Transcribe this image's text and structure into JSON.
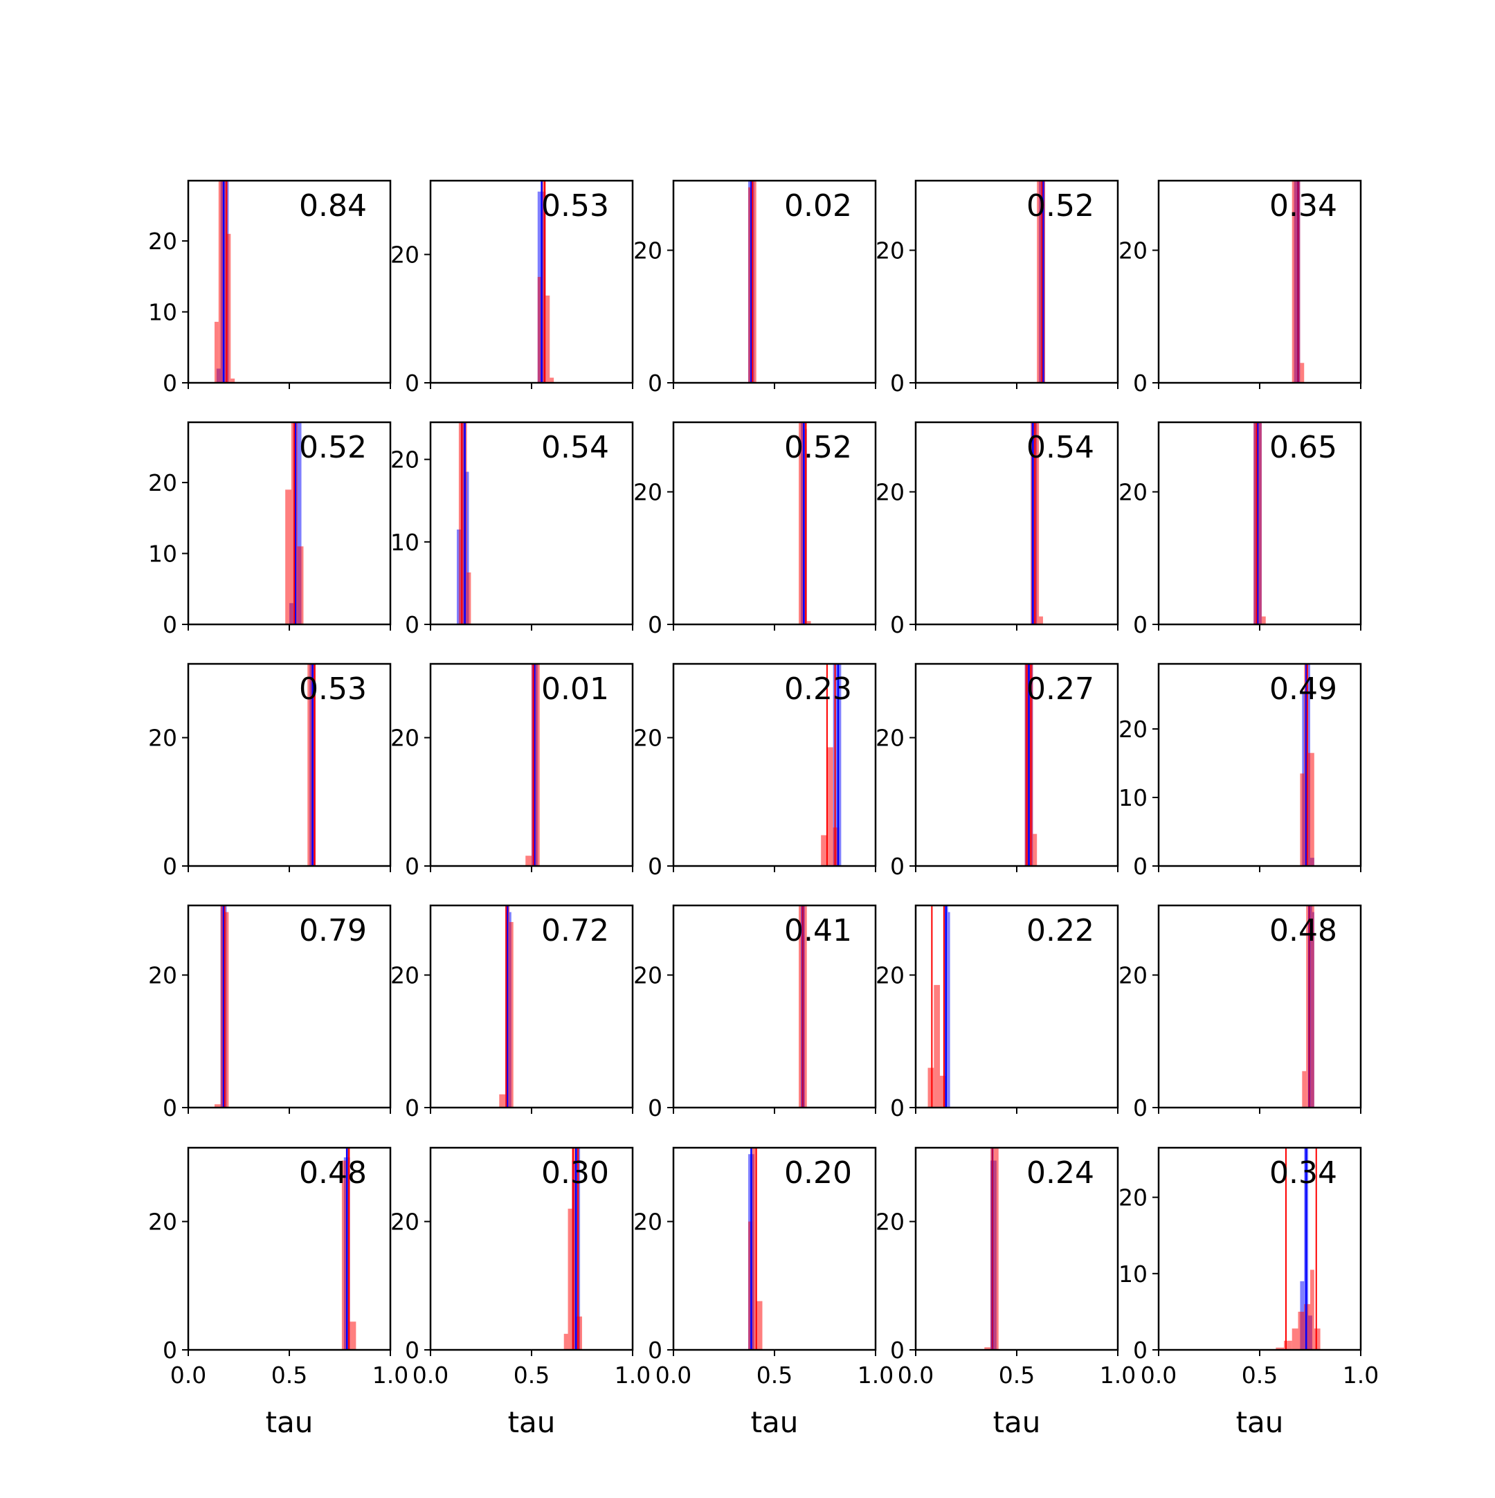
{
  "colors": {
    "series_a": "#0000ff",
    "series_b": "#ff0000",
    "axes": "#000000"
  },
  "chart_data": {
    "type": "histogram-grid",
    "rows": 5,
    "cols": 5,
    "xlabel": "tau",
    "xlim": [
      0,
      1
    ],
    "xticks": [
      "0.0",
      "0.5",
      "1.0"
    ],
    "sharex": true,
    "panels": [
      {
        "label": "0.84",
        "ymax": 28.5,
        "yticks": [
          0,
          10,
          20
        ],
        "blue": [
          [
            0.14,
            0.16,
            2.0
          ],
          [
            0.16,
            0.18,
            28.5
          ],
          [
            0.18,
            0.2,
            28.5
          ]
        ],
        "red": [
          [
            0.13,
            0.15,
            8.6
          ],
          [
            0.15,
            0.17,
            28.5
          ],
          [
            0.17,
            0.19,
            28.5
          ],
          [
            0.19,
            0.21,
            21
          ],
          [
            0.21,
            0.23,
            0.6
          ]
        ],
        "vblue": [
          0.175
        ],
        "vred": [
          0.19
        ]
      },
      {
        "label": "0.53",
        "ymax": 31.5,
        "yticks": [
          0,
          20
        ],
        "blue": [
          [
            0.53,
            0.55,
            29.8
          ],
          [
            0.55,
            0.57,
            29.8
          ]
        ],
        "red": [
          [
            0.53,
            0.55,
            16.5
          ],
          [
            0.55,
            0.57,
            31.5
          ],
          [
            0.57,
            0.59,
            13.6
          ],
          [
            0.59,
            0.61,
            0.8
          ]
        ],
        "vblue": [
          0.55
        ],
        "vred": [
          0.565
        ]
      },
      {
        "label": "0.02",
        "ymax": 30.5,
        "yticks": [
          0,
          20
        ],
        "blue": [
          [
            0.37,
            0.39,
            30.5
          ],
          [
            0.39,
            0.4,
            30.5
          ]
        ],
        "red": [
          [
            0.37,
            0.39,
            29.5
          ],
          [
            0.39,
            0.41,
            30.5
          ]
        ],
        "vblue": [
          0.385
        ],
        "vred": [
          0.39
        ]
      },
      {
        "label": "0.52",
        "ymax": 30.5,
        "yticks": [
          0,
          20
        ],
        "blue": [
          [
            0.61,
            0.63,
            30.5
          ],
          [
            0.63,
            0.64,
            30.5
          ]
        ],
        "red": [
          [
            0.6,
            0.62,
            30.5
          ],
          [
            0.62,
            0.64,
            30.5
          ]
        ],
        "vblue": [
          0.63
        ],
        "vred": [
          0.625
        ]
      },
      {
        "label": "0.34",
        "ymax": 30.5,
        "yticks": [
          0,
          20
        ],
        "blue": [
          [
            0.67,
            0.69,
            30.5
          ],
          [
            0.69,
            0.7,
            30.5
          ]
        ],
        "red": [
          [
            0.66,
            0.68,
            30.5
          ],
          [
            0.68,
            0.7,
            30.5
          ],
          [
            0.7,
            0.72,
            3.0
          ]
        ],
        "vblue": [
          0.69
        ],
        "vred": [
          0.69
        ]
      },
      {
        "label": "0.52",
        "ymax": 28.5,
        "yticks": [
          0,
          10,
          20
        ],
        "blue": [
          [
            0.5,
            0.52,
            3.0
          ],
          [
            0.52,
            0.54,
            28.5
          ],
          [
            0.54,
            0.56,
            28.5
          ]
        ],
        "red": [
          [
            0.48,
            0.51,
            19
          ],
          [
            0.51,
            0.54,
            28.5
          ],
          [
            0.54,
            0.57,
            11
          ]
        ],
        "vblue": [
          0.53
        ],
        "vred": [
          0.525
        ]
      },
      {
        "label": "0.54",
        "ymax": 24.5,
        "yticks": [
          0,
          10,
          20
        ],
        "blue": [
          [
            0.13,
            0.15,
            11.5
          ],
          [
            0.15,
            0.17,
            24.5
          ],
          [
            0.17,
            0.19,
            18.5
          ]
        ],
        "red": [
          [
            0.14,
            0.16,
            24.5
          ],
          [
            0.16,
            0.18,
            24.5
          ],
          [
            0.18,
            0.2,
            6.3
          ]
        ],
        "vblue": [
          0.17
        ],
        "vred": [
          0.155
        ]
      },
      {
        "label": "0.52",
        "ymax": 30.5,
        "yticks": [
          0,
          20
        ],
        "blue": [
          [
            0.63,
            0.65,
            30.5
          ],
          [
            0.65,
            0.66,
            29.5
          ]
        ],
        "red": [
          [
            0.62,
            0.64,
            30.5
          ],
          [
            0.64,
            0.66,
            30.5
          ],
          [
            0.66,
            0.68,
            0.5
          ]
        ],
        "vblue": [
          0.645
        ],
        "vred": [
          0.655
        ]
      },
      {
        "label": "0.54",
        "ymax": 30.5,
        "yticks": [
          0,
          20
        ],
        "blue": [
          [
            0.57,
            0.59,
            30.5
          ],
          [
            0.59,
            0.6,
            30.5
          ]
        ],
        "red": [
          [
            0.57,
            0.59,
            30.5
          ],
          [
            0.59,
            0.61,
            30.5
          ],
          [
            0.61,
            0.63,
            1.2
          ]
        ],
        "vblue": [
          0.58
        ],
        "vred": [
          0.59
        ]
      },
      {
        "label": "0.65",
        "ymax": 30.5,
        "yticks": [
          0,
          20
        ],
        "blue": [
          [
            0.47,
            0.49,
            30.5
          ],
          [
            0.49,
            0.51,
            30.5
          ]
        ],
        "red": [
          [
            0.47,
            0.49,
            30.5
          ],
          [
            0.49,
            0.51,
            30.5
          ],
          [
            0.51,
            0.53,
            1.2
          ]
        ],
        "vblue": [
          0.49
        ],
        "vred": [
          0.485
        ]
      },
      {
        "label": "0.53",
        "ymax": 31.5,
        "yticks": [
          0,
          20
        ],
        "blue": [
          [
            0.6,
            0.62,
            31.5
          ],
          [
            0.62,
            0.63,
            31.5
          ]
        ],
        "red": [
          [
            0.59,
            0.61,
            31.5
          ],
          [
            0.61,
            0.63,
            31.5
          ]
        ],
        "vblue": [
          0.615
        ],
        "vred": [
          0.625
        ]
      },
      {
        "label": "0.01",
        "ymax": 31.5,
        "yticks": [
          0,
          20
        ],
        "blue": [
          [
            0.5,
            0.52,
            31.5
          ],
          [
            0.52,
            0.53,
            31.5
          ]
        ],
        "red": [
          [
            0.47,
            0.5,
            1.6
          ],
          [
            0.5,
            0.52,
            31.5
          ],
          [
            0.52,
            0.54,
            31.5
          ]
        ],
        "vblue": [
          0.515
        ],
        "vred": [
          0.51
        ]
      },
      {
        "label": "0.23",
        "ymax": 31.5,
        "yticks": [
          0,
          20
        ],
        "blue": [
          [
            0.79,
            0.81,
            31.5
          ],
          [
            0.81,
            0.83,
            31.5
          ]
        ],
        "red": [
          [
            0.73,
            0.76,
            4.8
          ],
          [
            0.76,
            0.79,
            18.5
          ],
          [
            0.79,
            0.82,
            6
          ]
        ],
        "vblue": [
          0.815
        ],
        "vred": [
          0.76,
          0.8
        ]
      },
      {
        "label": "0.27",
        "ymax": 31.5,
        "yticks": [
          0,
          20
        ],
        "blue": [
          [
            0.54,
            0.56,
            31.5
          ],
          [
            0.56,
            0.58,
            31.5
          ]
        ],
        "red": [
          [
            0.54,
            0.56,
            31.5
          ],
          [
            0.56,
            0.58,
            31.5
          ],
          [
            0.58,
            0.6,
            5
          ]
        ],
        "vblue": [
          0.56
        ],
        "vred": [
          0.55,
          0.57
        ]
      },
      {
        "label": "0.49",
        "ymax": 29.5,
        "yticks": [
          0,
          10,
          20
        ],
        "blue": [
          [
            0.71,
            0.73,
            25.5
          ],
          [
            0.73,
            0.75,
            29.5
          ],
          [
            0.75,
            0.77,
            1.2
          ]
        ],
        "red": [
          [
            0.7,
            0.72,
            13.5
          ],
          [
            0.72,
            0.74,
            29.5
          ],
          [
            0.74,
            0.77,
            16.5
          ]
        ],
        "vblue": [
          0.73
        ],
        "vred": [
          0.735
        ]
      },
      {
        "label": "0.79",
        "ymax": 30.5,
        "yticks": [
          0,
          20
        ],
        "blue": [
          [
            0.16,
            0.18,
            30.5
          ],
          [
            0.18,
            0.19,
            30.5
          ]
        ],
        "red": [
          [
            0.13,
            0.16,
            0.5
          ],
          [
            0.16,
            0.18,
            30.5
          ],
          [
            0.18,
            0.2,
            29.5
          ]
        ],
        "vblue": [
          0.175
        ],
        "vred": [
          0.18
        ]
      },
      {
        "label": "0.72",
        "ymax": 30.5,
        "yticks": [
          0,
          20
        ],
        "blue": [
          [
            0.37,
            0.39,
            30.5
          ],
          [
            0.39,
            0.4,
            29.5
          ]
        ],
        "red": [
          [
            0.34,
            0.37,
            2.0
          ],
          [
            0.37,
            0.39,
            30.5
          ],
          [
            0.39,
            0.41,
            28
          ]
        ],
        "vblue": [
          0.38
        ],
        "vred": [
          0.375
        ]
      },
      {
        "label": "0.41",
        "ymax": 30.5,
        "yticks": [
          0,
          20
        ],
        "blue": [
          [
            0.63,
            0.65,
            30.5
          ]
        ],
        "red": [
          [
            0.62,
            0.64,
            30.5
          ],
          [
            0.64,
            0.66,
            30.5
          ]
        ],
        "vblue": [
          0.64
        ],
        "vred": [
          0.64
        ]
      },
      {
        "label": "0.22",
        "ymax": 30.5,
        "yticks": [
          0,
          20
        ],
        "blue": [
          [
            0.14,
            0.16,
            30.5
          ],
          [
            0.16,
            0.17,
            29.5
          ]
        ],
        "red": [
          [
            0.06,
            0.09,
            6
          ],
          [
            0.09,
            0.12,
            18.5
          ],
          [
            0.12,
            0.15,
            4.8
          ]
        ],
        "vblue": [
          0.15
        ],
        "vred": [
          0.08,
          0.14
        ]
      },
      {
        "label": "0.48",
        "ymax": 30.5,
        "yticks": [
          0,
          20
        ],
        "blue": [
          [
            0.74,
            0.76,
            30.5
          ],
          [
            0.76,
            0.77,
            29.5
          ]
        ],
        "red": [
          [
            0.71,
            0.73,
            5.5
          ],
          [
            0.73,
            0.75,
            30.5
          ],
          [
            0.75,
            0.77,
            30.5
          ]
        ],
        "vblue": [
          0.745
        ],
        "vred": [
          0.745
        ]
      },
      {
        "label": "0.48",
        "ymax": 31.5,
        "yticks": [
          0,
          20
        ],
        "blue": [
          [
            0.77,
            0.79,
            30
          ],
          [
            0.79,
            0.8,
            30
          ]
        ],
        "red": [
          [
            0.76,
            0.78,
            29.5
          ],
          [
            0.78,
            0.8,
            31.5
          ],
          [
            0.8,
            0.83,
            4.4
          ]
        ],
        "vblue": [
          0.785
        ],
        "vred": [
          0.795
        ]
      },
      {
        "label": "0.30",
        "ymax": 31.5,
        "yticks": [
          0,
          20
        ],
        "blue": [
          [
            0.7,
            0.72,
            29.5
          ],
          [
            0.72,
            0.74,
            31.5
          ]
        ],
        "red": [
          [
            0.66,
            0.68,
            2.5
          ],
          [
            0.68,
            0.7,
            22
          ],
          [
            0.7,
            0.72,
            31.5
          ],
          [
            0.72,
            0.75,
            5.2
          ]
        ],
        "vblue": [
          0.72
        ],
        "vred": [
          0.705,
          0.73
        ]
      },
      {
        "label": "0.20",
        "ymax": 31.5,
        "yticks": [
          0,
          20
        ],
        "blue": [
          [
            0.37,
            0.39,
            30.5
          ],
          [
            0.39,
            0.4,
            30.5
          ]
        ],
        "red": [
          [
            0.37,
            0.39,
            20
          ],
          [
            0.39,
            0.41,
            31.5
          ],
          [
            0.41,
            0.44,
            7.6
          ]
        ],
        "vblue": [
          0.385
        ],
        "vred": [
          0.41
        ]
      },
      {
        "label": "0.24",
        "ymax": 31.5,
        "yticks": [
          0,
          20
        ],
        "blue": [
          [
            0.37,
            0.39,
            29.5
          ],
          [
            0.39,
            0.4,
            29.5
          ]
        ],
        "red": [
          [
            0.34,
            0.37,
            0.4
          ],
          [
            0.37,
            0.39,
            31.5
          ],
          [
            0.39,
            0.41,
            31.5
          ]
        ],
        "vblue": [
          0.38
        ],
        "vred": [
          0.38
        ]
      },
      {
        "label": "0.34",
        "ymax": 26.5,
        "yticks": [
          0,
          10,
          20
        ],
        "blue": [
          [
            0.7,
            0.72,
            9
          ],
          [
            0.72,
            0.74,
            26.5
          ],
          [
            0.74,
            0.76,
            4.5
          ]
        ],
        "red": [
          [
            0.58,
            0.62,
            0.3
          ],
          [
            0.62,
            0.66,
            1.2
          ],
          [
            0.66,
            0.69,
            2.8
          ],
          [
            0.69,
            0.72,
            5
          ],
          [
            0.72,
            0.75,
            6
          ],
          [
            0.75,
            0.77,
            10.5
          ],
          [
            0.77,
            0.8,
            2.8
          ]
        ],
        "vblue": [
          0.73
        ],
        "vred": [
          0.63,
          0.78
        ]
      }
    ]
  }
}
